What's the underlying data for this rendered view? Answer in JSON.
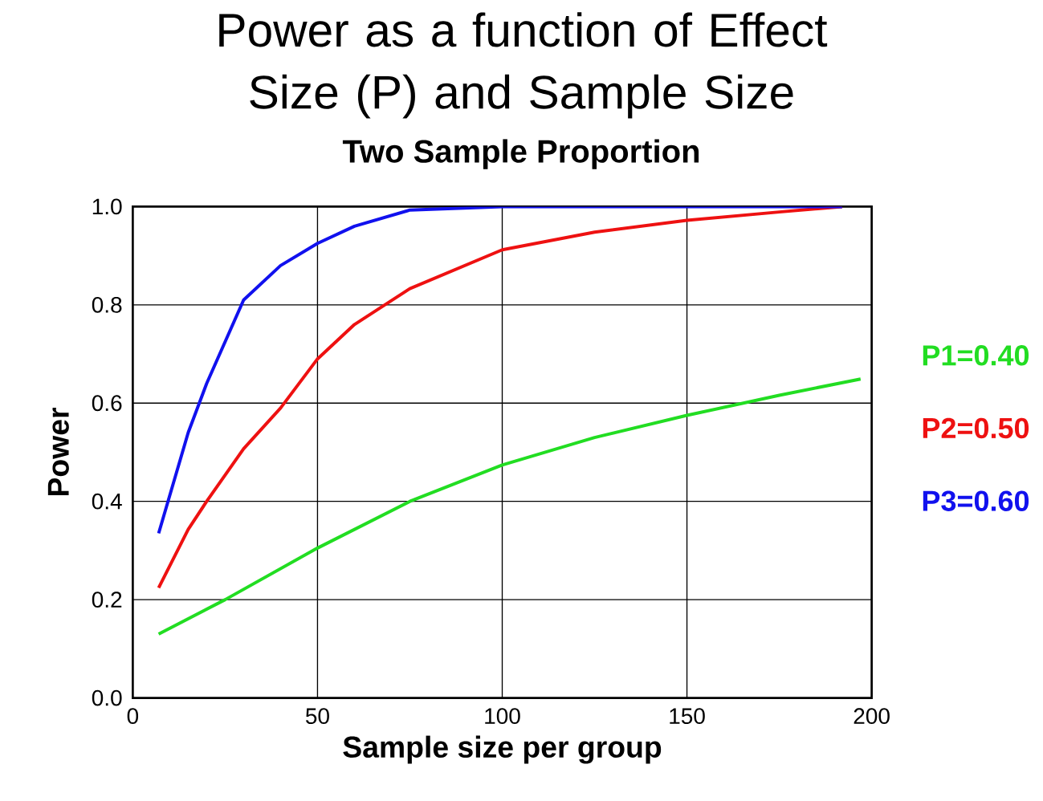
{
  "chart_data": {
    "type": "line",
    "title": "Power as a function of Effect Size (P) and Sample Size",
    "subtitle": "Two Sample Proportion",
    "xlabel": "Sample size per group",
    "ylabel": "Power",
    "xlim": [
      0,
      200
    ],
    "ylim": [
      0,
      1
    ],
    "xticks": [
      0,
      50,
      100,
      150,
      200
    ],
    "yticks": [
      {
        "value": 0,
        "label": "0.0"
      },
      {
        "value": 0.2,
        "label": "0.2"
      },
      {
        "value": 0.4,
        "label": "0.4"
      },
      {
        "value": 0.6,
        "label": "0.6"
      },
      {
        "value": 0.8,
        "label": "0.8"
      },
      {
        "value": 1,
        "label": "1.0"
      }
    ],
    "grid": true,
    "legend": "right",
    "marker": "none",
    "line_style": "solid",
    "series": [
      {
        "name": "P1=0.40",
        "color": "#22dd22",
        "x": [
          7,
          25,
          50,
          75,
          100,
          125,
          150,
          175,
          197
        ],
        "values": [
          0.13,
          0.2,
          0.305,
          0.4,
          0.474,
          0.53,
          0.575,
          0.616,
          0.649
        ]
      },
      {
        "name": "P2=0.50",
        "color": "#ee1111",
        "x": [
          7,
          15,
          20,
          30,
          40,
          50,
          60,
          75,
          100,
          125,
          150,
          175,
          192
        ],
        "values": [
          0.224,
          0.343,
          0.4,
          0.507,
          0.59,
          0.69,
          0.76,
          0.833,
          0.912,
          0.948,
          0.972,
          0.989,
          1.0
        ]
      },
      {
        "name": "P3=0.60",
        "color": "#1111ee",
        "x": [
          7,
          15,
          20,
          30,
          40,
          50,
          60,
          75,
          100,
          150,
          192
        ],
        "values": [
          0.335,
          0.54,
          0.64,
          0.81,
          0.88,
          0.925,
          0.96,
          0.993,
          1.0,
          1.0,
          1.0
        ]
      }
    ]
  }
}
